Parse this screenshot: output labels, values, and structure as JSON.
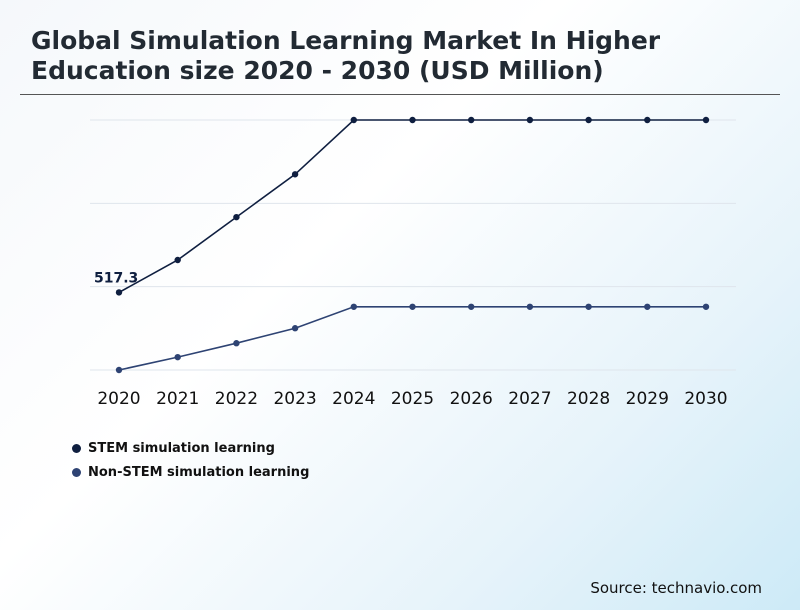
{
  "chart_data": {
    "type": "line",
    "title": "Global Simulation Learning Market In Higher Education size 2020 - 2030 (USD Million)",
    "xlabel": "",
    "ylabel": "",
    "categories": [
      "2020",
      "2021",
      "2022",
      "2023",
      "2024",
      "2025",
      "2026",
      "2027",
      "2028",
      "2029",
      "2030"
    ],
    "series": [
      {
        "name": "STEM simulation learning",
        "color": "#0f1f40",
        "values": [
          517.3,
          608,
          728,
          848,
          1000,
          1000,
          1000,
          1000,
          1000,
          1000,
          1000
        ]
      },
      {
        "name": "Non-STEM simulation learning",
        "color": "#2e4373",
        "values": [
          300,
          336,
          375,
          417,
          477,
          477,
          477,
          477,
          477,
          477,
          477
        ]
      }
    ],
    "ylim": [
      300,
      1000
    ],
    "grid": true,
    "annotations": [
      {
        "series": 0,
        "index": 0,
        "text": "517.3"
      }
    ]
  },
  "source": "Source: technavio.com"
}
